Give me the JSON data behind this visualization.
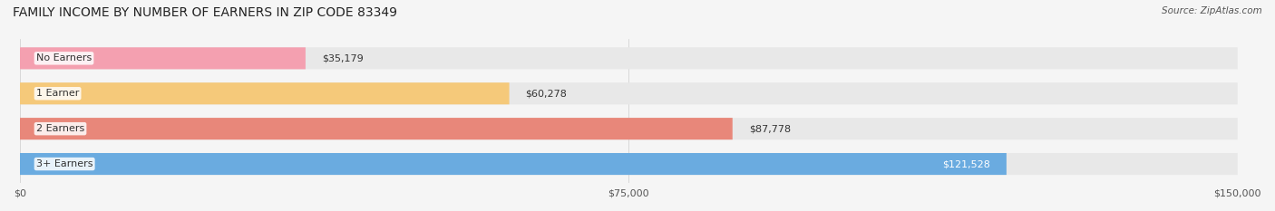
{
  "title": "FAMILY INCOME BY NUMBER OF EARNERS IN ZIP CODE 83349",
  "source": "Source: ZipAtlas.com",
  "categories": [
    "No Earners",
    "1 Earner",
    "2 Earners",
    "3+ Earners"
  ],
  "values": [
    35179,
    60278,
    87778,
    121528
  ],
  "bar_colors": [
    "#f4a0b0",
    "#f5c97a",
    "#e8877a",
    "#6aabe0"
  ],
  "label_colors": [
    "#555555",
    "#555555",
    "#555555",
    "#ffffff"
  ],
  "track_color": "#e8e8e8",
  "value_labels": [
    "$35,179",
    "$60,278",
    "$87,778",
    "$121,528"
  ],
  "x_ticks": [
    0,
    75000,
    150000
  ],
  "x_tick_labels": [
    "$0",
    "$75,000",
    "$150,000"
  ],
  "xlim": [
    0,
    150000
  ],
  "background_color": "#f5f5f5",
  "bar_height": 0.62,
  "figsize": [
    14.06,
    2.33
  ],
  "dpi": 100
}
